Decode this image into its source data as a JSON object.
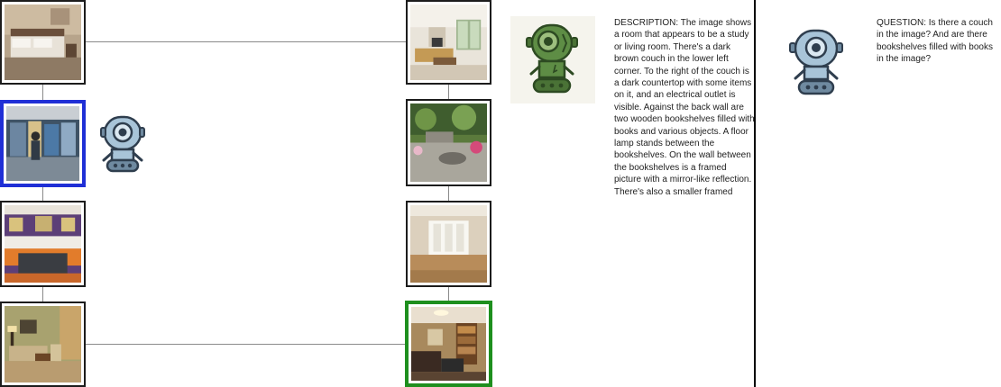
{
  "colors": {
    "selected_border": "#1f2fd6",
    "target_border": "#1e8f1e",
    "default_border": "#1c1c1c",
    "connector": "#8a8a8a",
    "agent_green": "#5e8d45",
    "agent_blue": "#a8c4d8"
  },
  "left_chain": [
    {
      "name": "bedroom",
      "state": "default"
    },
    {
      "name": "museum-exhibit",
      "state": "selected"
    },
    {
      "name": "purple-hall",
      "state": "default"
    },
    {
      "name": "sitting-room",
      "state": "default"
    }
  ],
  "right_chain": [
    {
      "name": "living-room",
      "state": "default"
    },
    {
      "name": "garden-patio",
      "state": "default"
    },
    {
      "name": "empty-room-windows",
      "state": "default"
    },
    {
      "name": "study-room",
      "state": "target"
    }
  ],
  "description": {
    "icon": "green-robot-icon",
    "text": "DESCRIPTION: The image shows a room that appears to be a study or living room. There's a dark brown couch in the lower left corner. To the right of the couch is a dark countertop with some items on it, and an electrical outlet is visible. Against the back wall are two wooden bookshelves filled with books and various objects. A floor lamp stands between the bookshelves. On the wall between the bookshelves is a framed picture with a mirror-like reflection. There's also a smaller framed"
  },
  "question": {
    "icon": "blue-robot-icon",
    "text": "QUESTION: Is there a couch in the image? And are there bookshelves filled with books in the image?"
  },
  "navigator": {
    "icon": "blue-robot-icon"
  }
}
